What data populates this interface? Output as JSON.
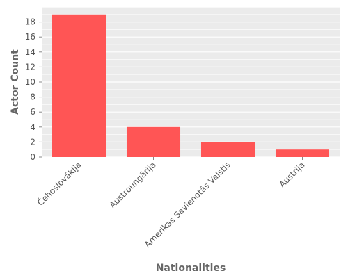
{
  "chart_data": {
    "type": "bar",
    "title": "",
    "xlabel": "Nationalities",
    "ylabel": "Actor Count",
    "categories": [
      "Čehoslovākija",
      "Austroungārija",
      "Amerikas Savienotās Valstis",
      "Austrija"
    ],
    "values": [
      19,
      4,
      2,
      1
    ],
    "ylim": [
      0,
      20
    ],
    "yticks": [
      0,
      2,
      4,
      6,
      8,
      10,
      12,
      14,
      16,
      18
    ],
    "grid": true,
    "legend": "none",
    "colors": {
      "bar": "#ff5555",
      "plot_background": "#ebebeb",
      "grid": "#ffffff",
      "text": "#555555"
    }
  }
}
